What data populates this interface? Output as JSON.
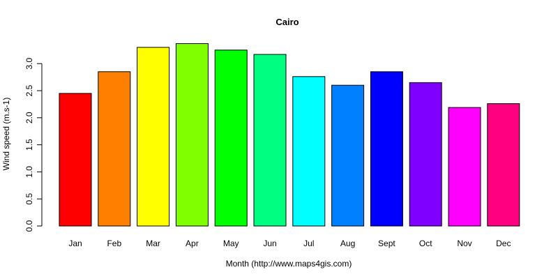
{
  "chart_data": {
    "type": "bar",
    "title": "Cairo",
    "xlabel": "Month (http://www.maps4gis.com)",
    "ylabel": "Wind speed (m.s-1)",
    "categories": [
      "Jan",
      "Feb",
      "Mar",
      "Apr",
      "May",
      "Jun",
      "Jul",
      "Aug",
      "Sept",
      "Oct",
      "Nov",
      "Dec"
    ],
    "values": [
      2.45,
      2.85,
      3.3,
      3.37,
      3.25,
      3.17,
      2.76,
      2.6,
      2.85,
      2.65,
      2.19,
      2.26
    ],
    "colors": [
      "#FF0000",
      "#FF8000",
      "#FFFF00",
      "#80FF00",
      "#00FF00",
      "#00FF80",
      "#00FFFF",
      "#0080FF",
      "#0000FF",
      "#8000FF",
      "#FF00FF",
      "#FF0080"
    ],
    "yticks": [
      "0.0",
      "0.5",
      "1.0",
      "1.5",
      "2.0",
      "2.5",
      "3.0"
    ],
    "ylim": [
      0,
      3.37
    ],
    "grid": false,
    "legend": "none"
  }
}
